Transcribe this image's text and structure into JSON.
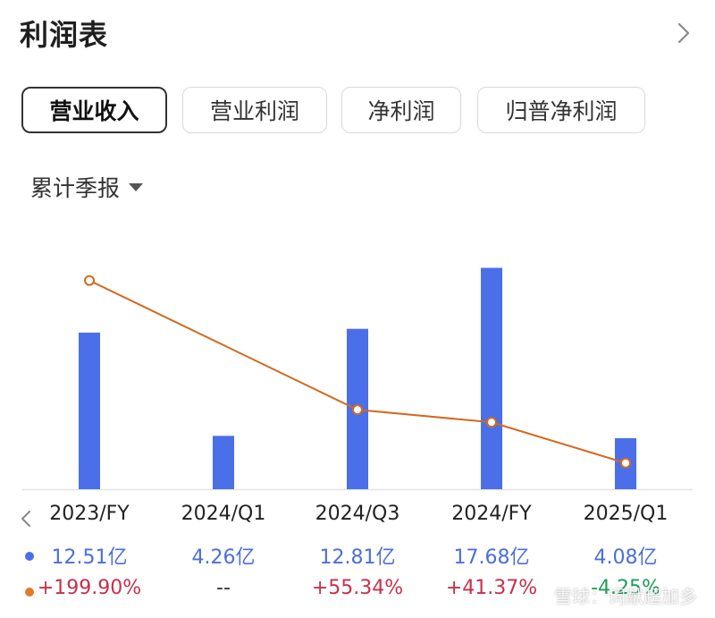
{
  "header": {
    "title": "利润表"
  },
  "tabs": [
    {
      "label": "营业收入",
      "active": true
    },
    {
      "label": "营业利润",
      "active": false
    },
    {
      "label": "净利润",
      "active": false
    },
    {
      "label": "归普净利润",
      "active": false
    }
  ],
  "period_selector": {
    "label": "累计季报"
  },
  "colors": {
    "bar": "#4a6fe8",
    "line": "#d2691e",
    "positive": "#c7304a",
    "negative": "#1f9d5b"
  },
  "chart_data": {
    "type": "bar",
    "categories": [
      "2023/FY",
      "2024/Q1",
      "2024/Q3",
      "2024/FY",
      "2025/Q1"
    ],
    "series": [
      {
        "values": [
          12.51,
          4.26,
          12.81,
          17.68,
          4.08
        ],
        "unit": "亿",
        "chart": "bar"
      },
      {
        "values": [
          199.9,
          null,
          55.34,
          41.37,
          -4.25
        ],
        "unit": "%",
        "chart": "line"
      }
    ],
    "value_labels": [
      "12.51亿",
      "4.26亿",
      "12.81亿",
      "17.68亿",
      "4.08亿"
    ],
    "growth_labels": [
      "+199.90%",
      "--",
      "+55.34%",
      "+41.37%",
      "-4.25%"
    ]
  },
  "watermark": "雪球：词献超加多"
}
